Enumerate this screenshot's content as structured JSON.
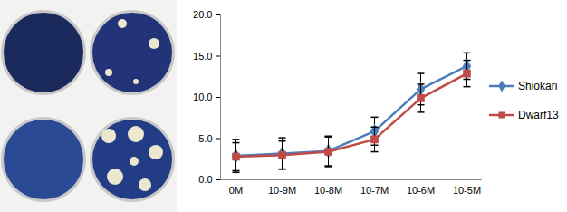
{
  "chart_data": {
    "type": "line",
    "categories": [
      "0M",
      "10-9M",
      "10-8M",
      "10-7M",
      "10-6M",
      "10-5M"
    ],
    "series": [
      {
        "name": "Shiokari",
        "color": "#4a7ebb",
        "marker": "diamond",
        "values": [
          2.9,
          3.2,
          3.5,
          5.9,
          11.0,
          13.8
        ],
        "errors": [
          2.0,
          1.9,
          1.8,
          1.7,
          1.9,
          1.6
        ]
      },
      {
        "name": "Dwarf13",
        "color": "#be4b48",
        "marker": "square",
        "values": [
          2.8,
          3.0,
          3.4,
          4.9,
          9.9,
          12.9
        ],
        "errors": [
          1.7,
          1.7,
          1.8,
          1.5,
          1.7,
          1.6
        ]
      }
    ],
    "ylim": [
      0,
      20
    ],
    "yticks": [
      {
        "value": 0,
        "label": "0.0"
      },
      {
        "value": 5,
        "label": "5.0"
      },
      {
        "value": 10,
        "label": "10.0"
      },
      {
        "value": 15,
        "label": "15.0"
      },
      {
        "value": 20,
        "label": "20.0"
      }
    ],
    "grid": false,
    "legend": "right"
  }
}
